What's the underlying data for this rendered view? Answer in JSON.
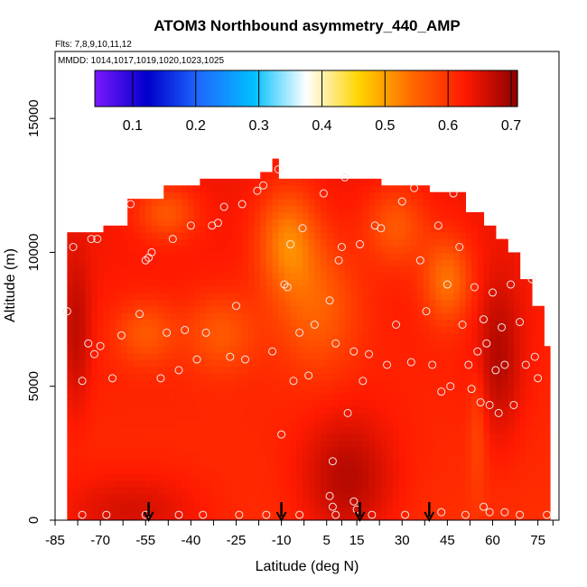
{
  "chart_data": {
    "type": "heatmap",
    "title": "ATOM3 Northbound asymmetry_440_AMP",
    "flights_label": "Flts: 7,8,9,10,11,12",
    "dates_label": "MMDD: 1014,1017,1019,1020,1023,1025",
    "xlabel": "Latitude (deg N)",
    "ylabel": "Altitude (m)",
    "xlim": [
      -85,
      82
    ],
    "ylim": [
      0,
      17500
    ],
    "x_ticks": [
      -85,
      -70,
      -55,
      -40,
      -25,
      -10,
      5,
      15,
      30,
      45,
      60,
      75
    ],
    "y_ticks": [
      0,
      5000,
      10000,
      15000
    ],
    "colorbar": {
      "vmin": 0.04,
      "vmax": 0.71,
      "ticks": [
        0.1,
        0.2,
        0.3,
        0.4,
        0.5,
        0.6,
        0.7
      ],
      "colors": [
        "#7b18ff",
        "#0000cc",
        "#1f6bff",
        "#00bfff",
        "#ffffff",
        "#ffd400",
        "#ff6a00",
        "#ff1a00",
        "#8b0000"
      ]
    },
    "arrow_latitudes": [
      -54,
      -10,
      16,
      39
    ],
    "value_field_grid_step": {
      "lat": 2,
      "alt": 250
    },
    "sample_points": [
      {
        "lat": -81,
        "alt": 7800
      },
      {
        "lat": -79,
        "alt": 10200
      },
      {
        "lat": -76,
        "alt": 5200
      },
      {
        "lat": -74,
        "alt": 6600
      },
      {
        "lat": -73,
        "alt": 10500
      },
      {
        "lat": -71,
        "alt": 10500
      },
      {
        "lat": -72,
        "alt": 6200
      },
      {
        "lat": -70,
        "alt": 6500
      },
      {
        "lat": -68,
        "alt": 200
      },
      {
        "lat": -66,
        "alt": 5300
      },
      {
        "lat": -63,
        "alt": 6900
      },
      {
        "lat": -60,
        "alt": 11800
      },
      {
        "lat": -57,
        "alt": 7700
      },
      {
        "lat": -55,
        "alt": 9700
      },
      {
        "lat": -54,
        "alt": 9800
      },
      {
        "lat": -53,
        "alt": 10000
      },
      {
        "lat": -50,
        "alt": 5300
      },
      {
        "lat": -48,
        "alt": 7000
      },
      {
        "lat": -46,
        "alt": 10500
      },
      {
        "lat": -44,
        "alt": 5600
      },
      {
        "lat": -42,
        "alt": 7100
      },
      {
        "lat": -40,
        "alt": 11000
      },
      {
        "lat": -38,
        "alt": 6000
      },
      {
        "lat": -36,
        "alt": 200
      },
      {
        "lat": -35,
        "alt": 7000
      },
      {
        "lat": -33,
        "alt": 11000
      },
      {
        "lat": -31,
        "alt": 11100
      },
      {
        "lat": -29,
        "alt": 11700
      },
      {
        "lat": -27,
        "alt": 6100
      },
      {
        "lat": -25,
        "alt": 8000
      },
      {
        "lat": -23,
        "alt": 11800
      },
      {
        "lat": -22,
        "alt": 6000
      },
      {
        "lat": -18,
        "alt": 12300
      },
      {
        "lat": -16,
        "alt": 12500
      },
      {
        "lat": -13,
        "alt": 6300
      },
      {
        "lat": -11,
        "alt": 13100
      },
      {
        "lat": -10,
        "alt": 3200
      },
      {
        "lat": -9,
        "alt": 8800
      },
      {
        "lat": -8,
        "alt": 8700
      },
      {
        "lat": -7,
        "alt": 10300
      },
      {
        "lat": -6,
        "alt": 5200
      },
      {
        "lat": -4,
        "alt": 7000
      },
      {
        "lat": -3,
        "alt": 10900
      },
      {
        "lat": -1,
        "alt": 5400
      },
      {
        "lat": 1,
        "alt": 7300
      },
      {
        "lat": 4,
        "alt": 12200
      },
      {
        "lat": 6,
        "alt": 8200
      },
      {
        "lat": 7,
        "alt": 2200
      },
      {
        "lat": 8,
        "alt": 6600
      },
      {
        "lat": 9,
        "alt": 9700
      },
      {
        "lat": 10,
        "alt": 10200
      },
      {
        "lat": 11,
        "alt": 12800
      },
      {
        "lat": 12,
        "alt": 4000
      },
      {
        "lat": 14,
        "alt": 6300
      },
      {
        "lat": 16,
        "alt": 10300
      },
      {
        "lat": 17,
        "alt": 5200
      },
      {
        "lat": 19,
        "alt": 6200
      },
      {
        "lat": 21,
        "alt": 11000
      },
      {
        "lat": 23,
        "alt": 10900
      },
      {
        "lat": 25,
        "alt": 5800
      },
      {
        "lat": 28,
        "alt": 7300
      },
      {
        "lat": 30,
        "alt": 11900
      },
      {
        "lat": 33,
        "alt": 5900
      },
      {
        "lat": 34,
        "alt": 12400
      },
      {
        "lat": 36,
        "alt": 9700
      },
      {
        "lat": 38,
        "alt": 7800
      },
      {
        "lat": 40,
        "alt": 5800
      },
      {
        "lat": 42,
        "alt": 11000
      },
      {
        "lat": 43,
        "alt": 4800
      },
      {
        "lat": 45,
        "alt": 8800
      },
      {
        "lat": 46,
        "alt": 5000
      },
      {
        "lat": 47,
        "alt": 12200
      },
      {
        "lat": 49,
        "alt": 10200
      },
      {
        "lat": 50,
        "alt": 7300
      },
      {
        "lat": 52,
        "alt": 5800
      },
      {
        "lat": 53,
        "alt": 4900
      },
      {
        "lat": 54,
        "alt": 8700
      },
      {
        "lat": 55,
        "alt": 6300
      },
      {
        "lat": 56,
        "alt": 4400
      },
      {
        "lat": 57,
        "alt": 7500
      },
      {
        "lat": 58,
        "alt": 6600
      },
      {
        "lat": 59,
        "alt": 4300
      },
      {
        "lat": 60,
        "alt": 8500
      },
      {
        "lat": 61,
        "alt": 5600
      },
      {
        "lat": 62,
        "alt": 4000
      },
      {
        "lat": 63,
        "alt": 7200
      },
      {
        "lat": 64,
        "alt": 5800
      },
      {
        "lat": 66,
        "alt": 8800
      },
      {
        "lat": 67,
        "alt": 4300
      },
      {
        "lat": 69,
        "alt": 7400
      },
      {
        "lat": 71,
        "alt": 5800
      },
      {
        "lat": 73,
        "alt": 9000
      },
      {
        "lat": 74,
        "alt": 6100
      },
      {
        "lat": 75,
        "alt": 5300
      },
      {
        "lat": -76,
        "alt": 200
      },
      {
        "lat": -55,
        "alt": 200
      },
      {
        "lat": -44,
        "alt": 200
      },
      {
        "lat": -24,
        "alt": 200
      },
      {
        "lat": -15,
        "alt": 200
      },
      {
        "lat": -4,
        "alt": 200
      },
      {
        "lat": 6,
        "alt": 900
      },
      {
        "lat": 7,
        "alt": 500
      },
      {
        "lat": 8,
        "alt": 200
      },
      {
        "lat": 14,
        "alt": 700
      },
      {
        "lat": 15,
        "alt": 400
      },
      {
        "lat": 20,
        "alt": 200
      },
      {
        "lat": 31,
        "alt": 200
      },
      {
        "lat": 43,
        "alt": 300
      },
      {
        "lat": 51,
        "alt": 200
      },
      {
        "lat": 57,
        "alt": 500
      },
      {
        "lat": 59,
        "alt": 300
      },
      {
        "lat": 64,
        "alt": 300
      },
      {
        "lat": 69,
        "alt": 200
      },
      {
        "lat": 78,
        "alt": 200
      }
    ]
  }
}
